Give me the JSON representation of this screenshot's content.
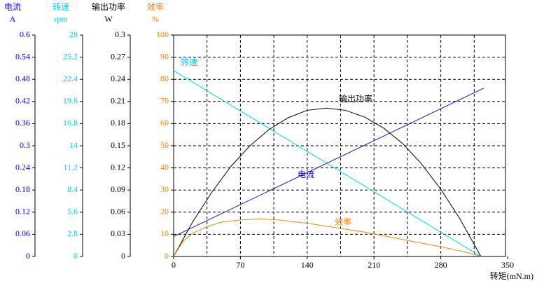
{
  "chart_data": {
    "type": "line",
    "x_label": "转矩(mN.m)",
    "xlim": [
      0,
      350
    ],
    "xticks": [
      0,
      70,
      140,
      210,
      280,
      350
    ],
    "xminorticks": [
      35,
      105,
      175,
      245,
      315
    ],
    "grid": true,
    "y_axes": [
      {
        "label": "电流",
        "unit": "A",
        "color": "#0000ff",
        "lim": [
          0,
          0.6
        ],
        "ticks": [
          0,
          0.06,
          0.12,
          0.18,
          0.24,
          0.3,
          0.36,
          0.42,
          0.48,
          0.54,
          0.6
        ]
      },
      {
        "label": "转速",
        "unit": "rpm",
        "color": "#00ccff",
        "lim": [
          0,
          28
        ],
        "ticks": [
          0,
          2.8,
          5.6,
          8.4,
          11.2,
          14,
          16.8,
          19.6,
          22.4,
          25.2,
          28
        ]
      },
      {
        "label": "输出功率",
        "unit": "W",
        "color": "#000000",
        "lim": [
          0,
          0.3
        ],
        "ticks": [
          0,
          0.03,
          0.06,
          0.09,
          0.12,
          0.15,
          0.18,
          0.21,
          0.24,
          0.27,
          0.3
        ]
      },
      {
        "label": "效率",
        "unit": "%",
        "color": "#ff8000",
        "lim": [
          0,
          100
        ],
        "ticks": [
          0,
          10,
          20,
          30,
          40,
          50,
          60,
          70,
          80,
          90,
          100
        ]
      }
    ],
    "series": [
      {
        "name": "转速",
        "axis": 1,
        "color": "#00d8e8",
        "label_color": "#00c8ff",
        "x": [
          0,
          322
        ],
        "values": [
          23.5,
          0
        ]
      },
      {
        "name": "电流",
        "axis": 0,
        "color": "#1c1ca8",
        "label_color": "#0000ff",
        "x": [
          0,
          325
        ],
        "values": [
          0.054,
          0.456
        ]
      },
      {
        "name": "输出功率",
        "axis": 2,
        "color": "#000000",
        "label_color": "#000000",
        "x": [
          0,
          20,
          40,
          60,
          80,
          100,
          120,
          140,
          160,
          180,
          200,
          220,
          240,
          260,
          280,
          300,
          322
        ],
        "values": [
          0,
          0.047,
          0.087,
          0.122,
          0.15,
          0.172,
          0.188,
          0.198,
          0.201,
          0.198,
          0.189,
          0.174,
          0.153,
          0.125,
          0.091,
          0.051,
          0
        ]
      },
      {
        "name": "效率",
        "axis": 3,
        "color": "#e08a20",
        "label_color": "#ff8000",
        "x": [
          0,
          10,
          20,
          35,
          50,
          70,
          90,
          110,
          140,
          170,
          200,
          230,
          260,
          290,
          310,
          322
        ],
        "values": [
          0,
          7,
          10.5,
          13.5,
          15.5,
          16.5,
          17,
          16.5,
          15,
          13,
          11,
          8.5,
          6,
          3.5,
          1.5,
          0
        ]
      }
    ]
  }
}
